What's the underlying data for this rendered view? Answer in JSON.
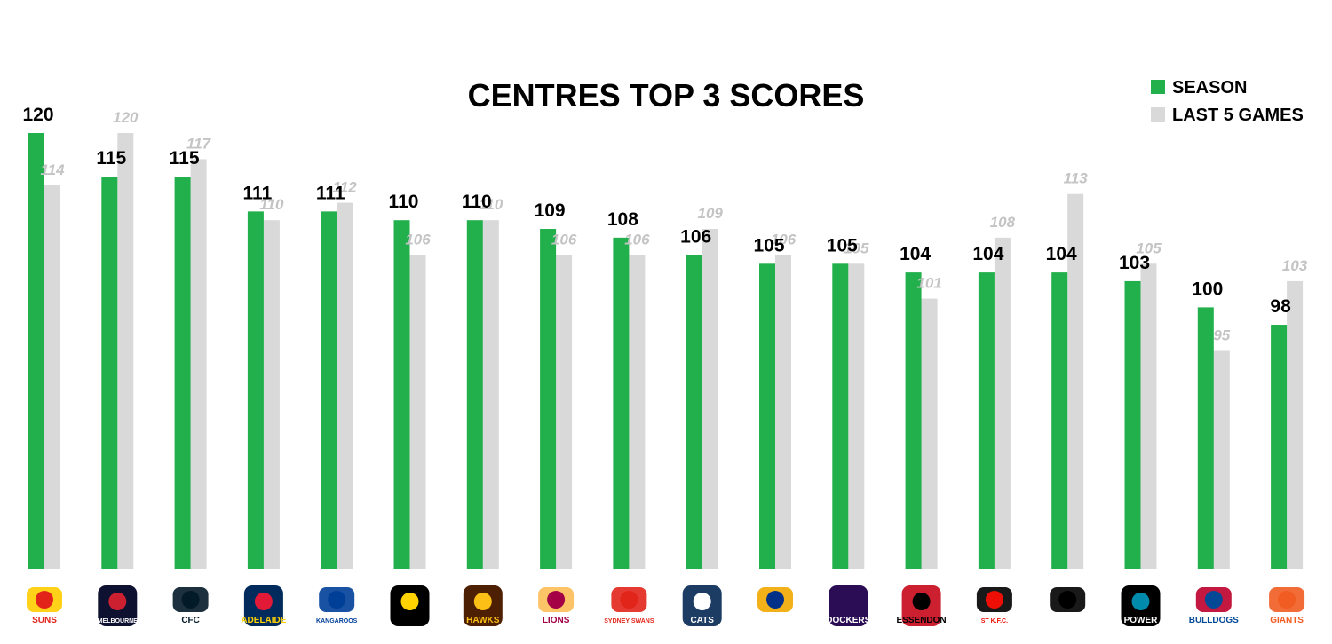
{
  "chart_data": {
    "type": "bar",
    "title": "CENTRES TOP 3 SCORES",
    "xlabel": "",
    "ylabel": "",
    "ylim": [
      70,
      124
    ],
    "grid": false,
    "legend_position": "top-right",
    "categories": [
      "SUNS",
      "MELBOURNE",
      "CARLTON",
      "ADELAIDE",
      "KANGAROOS",
      "RICHMOND",
      "HAWKS",
      "BRISBANE LIONS",
      "SYDNEY SWANS",
      "GEELONG CATS",
      "WEST COAST EAGLES",
      "FREMANTLE DOCKERS",
      "ESSENDON",
      "ST K.F.C.",
      "COLLINGWOOD",
      "POWER",
      "WESTERN BULLDOGS",
      "GIANTS"
    ],
    "series": [
      {
        "name": "SEASON",
        "color": "#21b04b",
        "label_color": "#000000",
        "values": [
          120,
          115,
          115,
          111,
          111,
          110,
          110,
          109,
          108,
          106,
          105,
          105,
          104,
          104,
          104,
          103,
          100,
          98
        ]
      },
      {
        "name": "LAST 5 GAMES",
        "color": "#d9d9d9",
        "label_color": "#c4c4c4",
        "values": [
          114,
          120,
          117,
          110,
          112,
          106,
          110,
          106,
          106,
          109,
          106,
          105,
          101,
          108,
          113,
          105,
          95,
          103
        ]
      }
    ]
  },
  "logos": [
    {
      "icon": "gold-coast-suns-logo",
      "text": "SUNS",
      "bg": "#ffffff",
      "fg": "#e2231a",
      "accent": "#ffcd00"
    },
    {
      "icon": "melbourne-logo",
      "text": "MELBOURNE",
      "bg": "#0f1131",
      "fg": "#ffffff",
      "accent": "#cc2031"
    },
    {
      "icon": "carlton-logo",
      "text": "CFC",
      "bg": "#ffffff",
      "fg": "#031a29",
      "accent": "#031a29"
    },
    {
      "icon": "adelaide-logo",
      "text": "ADELAIDE",
      "bg": "#002b5c",
      "fg": "#ffd200",
      "accent": "#e21937"
    },
    {
      "icon": "kangaroos-logo",
      "text": "KANGAROOS",
      "bg": "#ffffff",
      "fg": "#003f98",
      "accent": "#003f98"
    },
    {
      "icon": "richmond-logo",
      "text": "",
      "bg": "#000000",
      "fg": "#ffd200",
      "accent": "#ffd200"
    },
    {
      "icon": "hawks-logo",
      "text": "HAWKS",
      "bg": "#4d2004",
      "fg": "#fbbf15",
      "accent": "#fbbf15"
    },
    {
      "icon": "brisbane-lions-logo",
      "text": "LIONS",
      "bg": "#ffffff",
      "fg": "#a30046",
      "accent": "#fdbe57"
    },
    {
      "icon": "sydney-swans-logo",
      "text": "SYDNEY SWANS",
      "bg": "#ffffff",
      "fg": "#e1251b",
      "accent": "#e1251b"
    },
    {
      "icon": "geelong-cats-logo",
      "text": "CATS",
      "bg": "#1c3c63",
      "fg": "#ffffff",
      "accent": "#ffffff"
    },
    {
      "icon": "west-coast-eagles-logo",
      "text": "",
      "bg": "#ffffff",
      "fg": "#003087",
      "accent": "#f2a900"
    },
    {
      "icon": "fremantle-dockers-logo",
      "text": "DOCKERS",
      "bg": "#2a0d54",
      "fg": "#ffffff",
      "accent": "#2a0d54"
    },
    {
      "icon": "essendon-logo",
      "text": "ESSENDON",
      "bg": "#cc2031",
      "fg": "#000000",
      "accent": "#000000"
    },
    {
      "icon": "st-kilda-logo",
      "text": "ST K.F.C.",
      "bg": "#ffffff",
      "fg": "#ed0f05",
      "accent": "#000000"
    },
    {
      "icon": "collingwood-logo",
      "text": "",
      "bg": "#ffffff",
      "fg": "#000000",
      "accent": "#000000"
    },
    {
      "icon": "port-adelaide-logo",
      "text": "POWER",
      "bg": "#000000",
      "fg": "#ffffff",
      "accent": "#008aab"
    },
    {
      "icon": "western-bulldogs-logo",
      "text": "BULLDOGS",
      "bg": "#ffffff",
      "fg": "#014896",
      "accent": "#bd002b"
    },
    {
      "icon": "gws-giants-logo",
      "text": "GIANTS",
      "bg": "#ffffff",
      "fg": "#f15c22",
      "accent": "#f15c22"
    }
  ]
}
